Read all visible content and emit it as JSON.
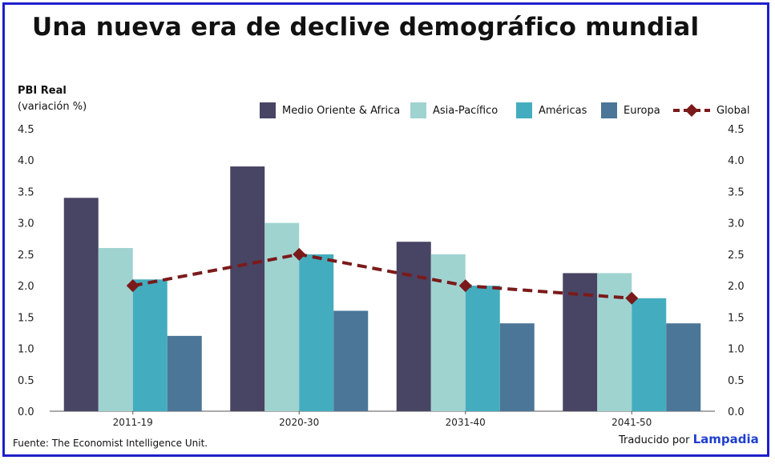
{
  "title": "Una nueva era de declive demográfico mundial",
  "ylabel_line1": "PBI Real",
  "ylabel_line2": "(variación %)",
  "source_label": "Fuente:",
  "source_text": "The Economist Intelligence Unit.",
  "credit_text": "Traducido por",
  "credit_brand": "Lampadia",
  "colors": {
    "Medio Oriente & Africa": "#484463",
    "Asia-Pacífico": "#9fd3d0",
    "Américas": "#43adbf",
    "Europa": "#4b7698",
    "Global": "#7a1a1a",
    "frame": "#1f1fcc"
  },
  "chart_data": {
    "type": "bar",
    "title": "Una nueva era de declive demográfico mundial",
    "xlabel": "",
    "ylabel": "PBI Real (variación %)",
    "categories": [
      "2011-19",
      "2020-30",
      "2031-40",
      "2041-50"
    ],
    "series": [
      {
        "name": "Medio Oriente & Africa",
        "values": [
          3.4,
          3.9,
          2.7,
          2.2
        ]
      },
      {
        "name": "Asia-Pacífico",
        "values": [
          2.6,
          3.0,
          2.5,
          2.2
        ]
      },
      {
        "name": "Américas",
        "values": [
          2.1,
          2.5,
          2.0,
          1.8
        ]
      },
      {
        "name": "Europa",
        "values": [
          1.2,
          1.6,
          1.4,
          1.4
        ]
      }
    ],
    "line_series": {
      "name": "Global",
      "values": [
        2.0,
        2.5,
        2.0,
        1.8
      ],
      "style": "dashed",
      "marker": "diamond"
    },
    "ylim": [
      0,
      4.5
    ],
    "yticks": [
      "0.0",
      "0.5",
      "1.0",
      "1.5",
      "2.0",
      "2.5",
      "3.0",
      "3.5",
      "4.0",
      "4.5"
    ],
    "grid": false,
    "legend": "top"
  }
}
